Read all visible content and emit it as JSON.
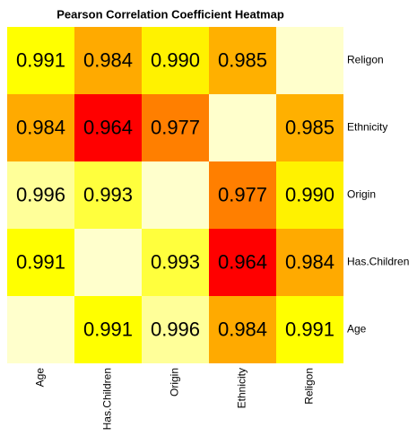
{
  "chart_data": {
    "type": "heatmap",
    "title": "Pearson Correlation Coefficient Heatmap",
    "x_categories": [
      "Age",
      "Has.Children",
      "Origin",
      "Ethnicity",
      "Religon"
    ],
    "y_categories": [
      "Religon",
      "Ethnicity",
      "Origin",
      "Has.Children",
      "Age"
    ],
    "values": [
      [
        0.991,
        0.984,
        0.99,
        0.985,
        null
      ],
      [
        0.984,
        0.964,
        0.977,
        null,
        0.985
      ],
      [
        0.996,
        0.993,
        null,
        0.977,
        0.99
      ],
      [
        0.991,
        null,
        0.993,
        0.964,
        0.984
      ],
      [
        null,
        0.991,
        0.996,
        0.984,
        0.991
      ]
    ],
    "value_labels": [
      [
        "0.991",
        "0.984",
        "0.990",
        "0.985",
        null
      ],
      [
        "0.984",
        "0.964",
        "0.977",
        null,
        "0.985"
      ],
      [
        "0.996",
        "0.993",
        null,
        "0.977",
        "0.990"
      ],
      [
        "0.991",
        null,
        "0.993",
        "0.964",
        "0.984"
      ],
      [
        null,
        "0.991",
        "0.996",
        "0.984",
        "0.991"
      ]
    ],
    "colorscale": [
      [
        0.964,
        "#FF0000"
      ],
      [
        0.977,
        "#FF7F00"
      ],
      [
        0.985,
        "#FFB000"
      ],
      [
        0.991,
        "#FFFF00"
      ],
      [
        0.996,
        "#FFFF99"
      ]
    ],
    "missing_color": "#FFFFCC"
  }
}
